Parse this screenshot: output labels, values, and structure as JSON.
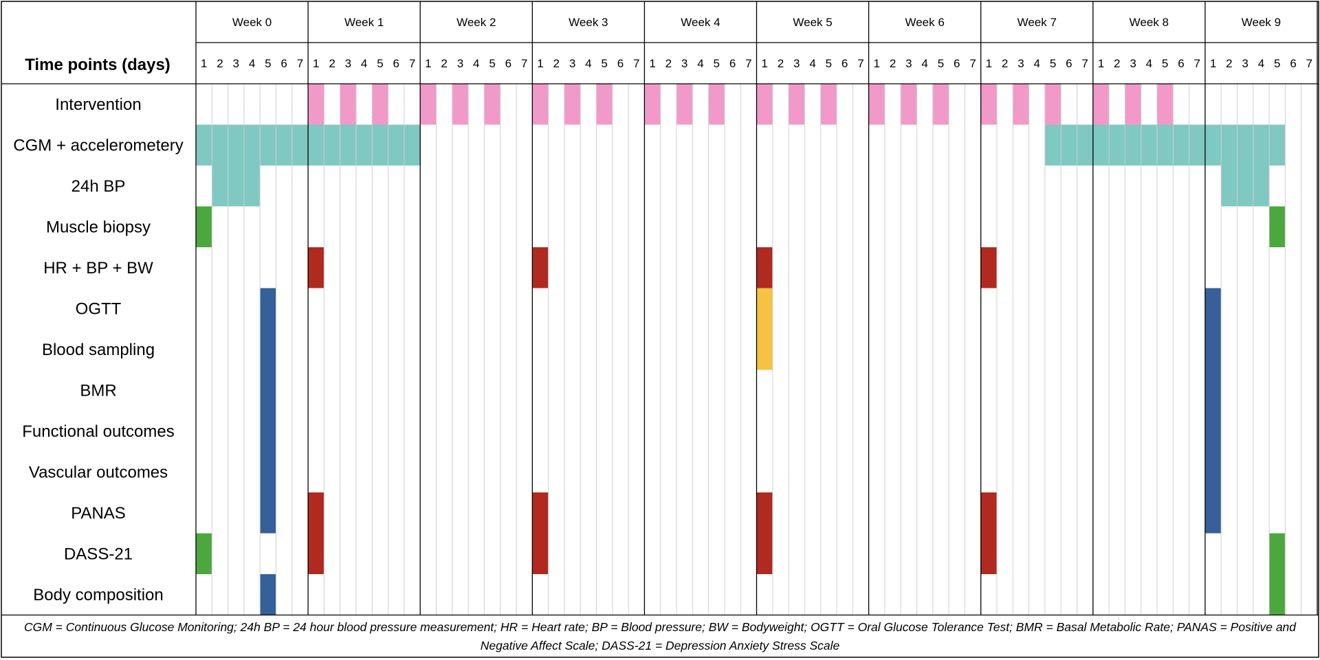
{
  "header": {
    "title": "Time points (days)"
  },
  "weeks": [
    "Week 0",
    "Week 1",
    "Week 2",
    "Week 3",
    "Week 4",
    "Week 5",
    "Week 6",
    "Week 7",
    "Week 8",
    "Week 9"
  ],
  "days": [
    "1",
    "2",
    "3",
    "4",
    "5",
    "6",
    "7"
  ],
  "rows": [
    "Intervention",
    "CGM + accelerometery",
    "24h BP",
    "Muscle biopsy",
    "HR + BP + BW",
    "OGTT",
    "Blood sampling",
    "BMR",
    "Functional outcomes",
    "Vascular outcomes",
    "PANAS",
    "DASS-21",
    "Body composition"
  ],
  "colors": {
    "pink": "#F19AC9",
    "teal": "#80C8C2",
    "green": "#4CA73F",
    "red": "#B02A20",
    "blue": "#35609A",
    "yellow": "#F5C242"
  },
  "chart_data": {
    "type": "table",
    "description_key": "Each block = [row_index, week_index, start_day, end_day, color_key]; day numbering 1-7",
    "blocks": [
      [
        0,
        1,
        1,
        1,
        "pink"
      ],
      [
        0,
        1,
        3,
        3,
        "pink"
      ],
      [
        0,
        1,
        5,
        5,
        "pink"
      ],
      [
        0,
        2,
        1,
        1,
        "pink"
      ],
      [
        0,
        2,
        3,
        3,
        "pink"
      ],
      [
        0,
        2,
        5,
        5,
        "pink"
      ],
      [
        0,
        3,
        1,
        1,
        "pink"
      ],
      [
        0,
        3,
        3,
        3,
        "pink"
      ],
      [
        0,
        3,
        5,
        5,
        "pink"
      ],
      [
        0,
        4,
        1,
        1,
        "pink"
      ],
      [
        0,
        4,
        3,
        3,
        "pink"
      ],
      [
        0,
        4,
        5,
        5,
        "pink"
      ],
      [
        0,
        5,
        1,
        1,
        "pink"
      ],
      [
        0,
        5,
        3,
        3,
        "pink"
      ],
      [
        0,
        5,
        5,
        5,
        "pink"
      ],
      [
        0,
        6,
        1,
        1,
        "pink"
      ],
      [
        0,
        6,
        3,
        3,
        "pink"
      ],
      [
        0,
        6,
        5,
        5,
        "pink"
      ],
      [
        0,
        7,
        1,
        1,
        "pink"
      ],
      [
        0,
        7,
        3,
        3,
        "pink"
      ],
      [
        0,
        7,
        5,
        5,
        "pink"
      ],
      [
        0,
        8,
        1,
        1,
        "pink"
      ],
      [
        0,
        8,
        3,
        3,
        "pink"
      ],
      [
        0,
        8,
        5,
        5,
        "pink"
      ],
      [
        1,
        0,
        1,
        7,
        "teal"
      ],
      [
        1,
        1,
        1,
        7,
        "teal"
      ],
      [
        1,
        7,
        5,
        7,
        "teal"
      ],
      [
        1,
        8,
        1,
        7,
        "teal"
      ],
      [
        1,
        9,
        1,
        5,
        "teal"
      ],
      [
        2,
        0,
        2,
        4,
        "teal"
      ],
      [
        2,
        9,
        2,
        4,
        "teal"
      ],
      [
        3,
        0,
        1,
        1,
        "green"
      ],
      [
        3,
        9,
        5,
        5,
        "green"
      ],
      [
        4,
        1,
        1,
        1,
        "red"
      ],
      [
        4,
        3,
        1,
        1,
        "red"
      ],
      [
        4,
        5,
        1,
        1,
        "red"
      ],
      [
        4,
        7,
        1,
        1,
        "red"
      ],
      [
        5,
        0,
        5,
        5,
        "blue"
      ],
      [
        6,
        0,
        5,
        5,
        "blue"
      ],
      [
        7,
        0,
        5,
        5,
        "blue"
      ],
      [
        8,
        0,
        5,
        5,
        "blue"
      ],
      [
        9,
        0,
        5,
        5,
        "blue"
      ],
      [
        10,
        0,
        5,
        5,
        "blue"
      ],
      [
        5,
        5,
        1,
        1,
        "yellow"
      ],
      [
        6,
        5,
        1,
        1,
        "yellow"
      ],
      [
        5,
        9,
        1,
        1,
        "blue"
      ],
      [
        6,
        9,
        1,
        1,
        "blue"
      ],
      [
        7,
        9,
        1,
        1,
        "blue"
      ],
      [
        8,
        9,
        1,
        1,
        "blue"
      ],
      [
        9,
        9,
        1,
        1,
        "blue"
      ],
      [
        10,
        9,
        1,
        1,
        "blue"
      ],
      [
        10,
        1,
        1,
        1,
        "red"
      ],
      [
        11,
        1,
        1,
        1,
        "red"
      ],
      [
        10,
        3,
        1,
        1,
        "red"
      ],
      [
        11,
        3,
        1,
        1,
        "red"
      ],
      [
        10,
        5,
        1,
        1,
        "red"
      ],
      [
        11,
        5,
        1,
        1,
        "red"
      ],
      [
        10,
        7,
        1,
        1,
        "red"
      ],
      [
        11,
        7,
        1,
        1,
        "red"
      ],
      [
        11,
        0,
        1,
        1,
        "green"
      ],
      [
        11,
        9,
        5,
        5,
        "green"
      ],
      [
        12,
        9,
        5,
        5,
        "green"
      ],
      [
        12,
        0,
        5,
        5,
        "blue"
      ]
    ]
  },
  "footnote": {
    "text": "CGM = Continuous Glucose Monitoring; 24h BP = 24 hour blood pressure measurement; HR = Heart rate; BP = Blood pressure; BW = Bodyweight; OGTT = Oral Glucose Tolerance Test; BMR = Basal Metabolic Rate; PANAS = Positive and Negative Affect Scale; DASS-21 = Depression Anxiety Stress Scale"
  }
}
